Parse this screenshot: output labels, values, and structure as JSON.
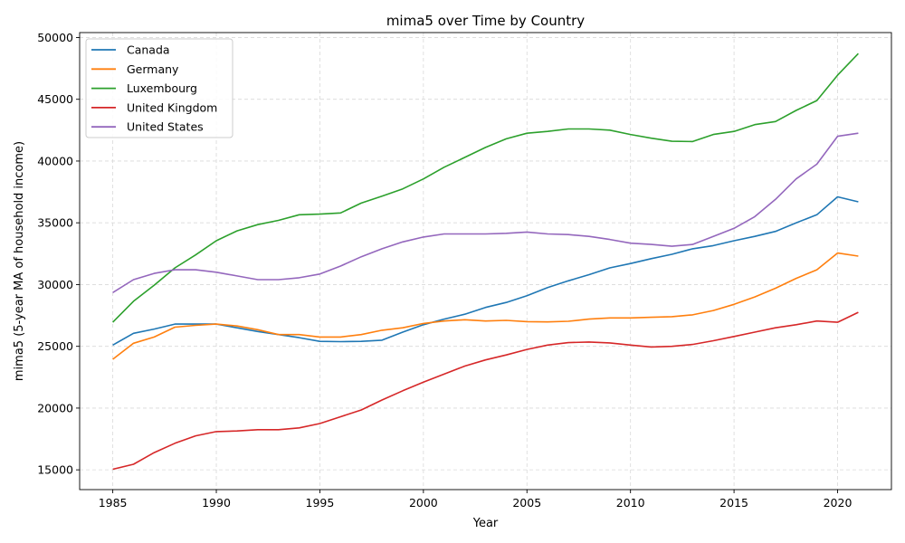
{
  "chart_data": {
    "type": "line",
    "title": "mima5 over Time by Country",
    "xlabel": "Year",
    "ylabel": "mima5 (5-year MA of household income)",
    "xlim": [
      1983.4,
      2022.6
    ],
    "ylim": [
      13400,
      50400
    ],
    "x_ticks": [
      1985,
      1990,
      1995,
      2000,
      2005,
      2010,
      2015,
      2020
    ],
    "y_ticks": [
      15000,
      20000,
      25000,
      30000,
      35000,
      40000,
      45000,
      50000
    ],
    "grid": true,
    "legend_position": "upper-left",
    "x": [
      1985,
      1986,
      1987,
      1988,
      1989,
      1990,
      1991,
      1992,
      1993,
      1994,
      1995,
      1996,
      1997,
      1998,
      1999,
      2000,
      2001,
      2002,
      2003,
      2004,
      2005,
      2006,
      2007,
      2008,
      2009,
      2010,
      2011,
      2012,
      2013,
      2014,
      2015,
      2016,
      2017,
      2018,
      2019,
      2020,
      2021
    ],
    "series": [
      {
        "name": "Canada",
        "color": "#1f77b4",
        "values": [
          25100,
          26050,
          26400,
          26800,
          26800,
          26800,
          26500,
          26200,
          25950,
          25700,
          25400,
          25380,
          25400,
          25500,
          26150,
          26750,
          27200,
          27600,
          28150,
          28550,
          29100,
          29750,
          30300,
          30800,
          31350,
          31700,
          32100,
          32450,
          32900,
          33150,
          33550,
          33900,
          34300,
          35000,
          35650,
          37100,
          36700
        ]
      },
      {
        "name": "Germany",
        "color": "#ff7f0e",
        "values": [
          23950,
          25250,
          25750,
          26550,
          26700,
          26800,
          26650,
          26350,
          25950,
          25950,
          25750,
          25750,
          25950,
          26300,
          26500,
          26850,
          27050,
          27150,
          27050,
          27100,
          27000,
          26980,
          27030,
          27200,
          27300,
          27300,
          27350,
          27400,
          27550,
          27900,
          28400,
          29000,
          29700,
          30500,
          31200,
          32550,
          32300
        ]
      },
      {
        "name": "Luxembourg",
        "color": "#2ca02c",
        "values": [
          26950,
          28650,
          29950,
          31350,
          32400,
          33550,
          34350,
          34850,
          35200,
          35650,
          35700,
          35800,
          36600,
          37150,
          37750,
          38550,
          39500,
          40300,
          41100,
          41800,
          42250,
          42400,
          42600,
          42600,
          42500,
          42150,
          41850,
          41600,
          41580,
          42150,
          42400,
          42950,
          43200,
          44100,
          44900,
          46950,
          48700
        ]
      },
      {
        "name": "United Kingdom",
        "color": "#d62728",
        "values": [
          15050,
          15450,
          16400,
          17150,
          17750,
          18100,
          18150,
          18250,
          18250,
          18400,
          18750,
          19300,
          19850,
          20650,
          21400,
          22100,
          22750,
          23400,
          23900,
          24300,
          24750,
          25100,
          25300,
          25350,
          25280,
          25100,
          24950,
          25000,
          25150,
          25450,
          25800,
          26150,
          26500,
          26750,
          27050,
          26950,
          27750
        ]
      },
      {
        "name": "United States",
        "color": "#9467bd",
        "values": [
          29350,
          30400,
          30900,
          31200,
          31200,
          31000,
          30700,
          30400,
          30400,
          30550,
          30850,
          31500,
          32250,
          32900,
          33450,
          33850,
          34100,
          34100,
          34100,
          34150,
          34250,
          34100,
          34050,
          33900,
          33650,
          33350,
          33250,
          33100,
          33250,
          33900,
          34550,
          35500,
          36900,
          38550,
          39750,
          42000,
          42250
        ]
      }
    ]
  }
}
